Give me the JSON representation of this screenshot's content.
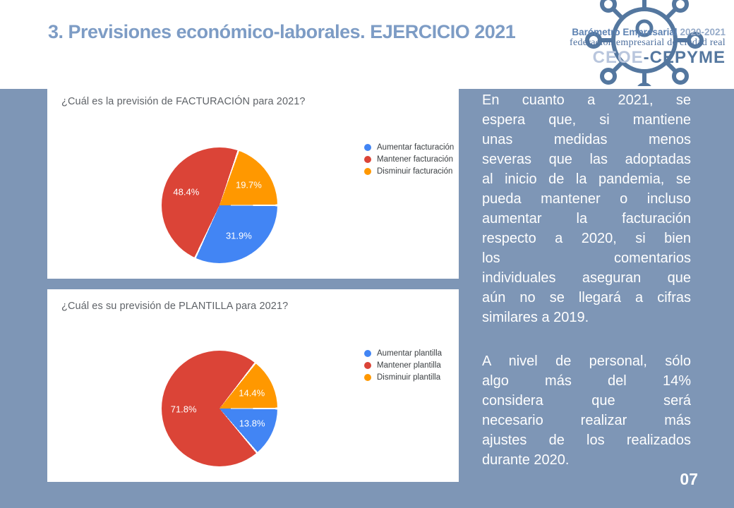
{
  "slide": {
    "title": "3. Previsiones económico-laborales. EJERCICIO 2021",
    "page_number": "07",
    "colors": {
      "background": "#7e96b6",
      "title": "#7d9cc5",
      "panel": "#ffffff",
      "commentary_text": "#ffffff"
    }
  },
  "logo": {
    "barometro": "Barómetro Empresarial",
    "years": "2020-2021",
    "federacion": "federación empresarial de ciudad real",
    "ceoe": "CEOE",
    "cepyme": "-CEPYME",
    "icon": "coronavirus-network-icon",
    "icon_color": "#54779f"
  },
  "chart_data": [
    {
      "type": "pie",
      "title": "¿Cuál es la previsión de FACTURACIÓN para 2021?",
      "labels": [
        "Aumentar facturación",
        "Mantener facturación",
        "Disminuir facturación"
      ],
      "values": [
        31.9,
        48.4,
        19.7
      ],
      "colors": [
        "#4285f4",
        "#db4437",
        "#ff9800"
      ],
      "value_labels": [
        "31.9%",
        "48.4%",
        "19.7%"
      ],
      "legend_position": "right",
      "start_angle_deg": 90,
      "direction": "clockwise"
    },
    {
      "type": "pie",
      "title": "¿Cuál es su previsión de PLANTILLA para 2021?",
      "labels": [
        "Aumentar plantilla",
        "Mantener plantilla",
        "Disminuir plantilla"
      ],
      "values": [
        13.8,
        71.8,
        14.4
      ],
      "colors": [
        "#4285f4",
        "#db4437",
        "#ff9800"
      ],
      "value_labels": [
        "13.8%",
        "71.8%",
        "14.4%"
      ],
      "legend_position": "right",
      "start_angle_deg": 90,
      "direction": "clockwise"
    }
  ],
  "commentary": {
    "paragraphs": [
      {
        "text": "En cuanto a 2021, se espera que, si mantiene unas medidas menos severas que las adoptadas al inicio de la pandemia, se pueda mantener o incluso aumentar la facturación respecto a 2020, si bien los comentarios individuales aseguran que aún no se llegará a cifras similares a 2019.",
        "lines": [
          "En cuanto a 2021, se",
          "espera que, si mantiene",
          "unas medidas menos",
          "severas que las adoptadas",
          "al inicio de la pandemia, se",
          "pueda mantener o incluso",
          "aumentar la facturación",
          "respecto a 2020, si bien",
          "los comentarios",
          "individuales aseguran que",
          "aún no se llegará a cifras",
          "similares a 2019."
        ]
      },
      {
        "text": "A nivel de personal, sólo algo más del 14% considera que será necesario realizar más ajustes de los realizados durante 2020.",
        "lines": [
          "A nivel de personal, sólo",
          "algo más del 14%",
          "considera que será",
          "necesario realizar más",
          "ajustes de los realizados",
          "durante 2020."
        ]
      }
    ]
  }
}
